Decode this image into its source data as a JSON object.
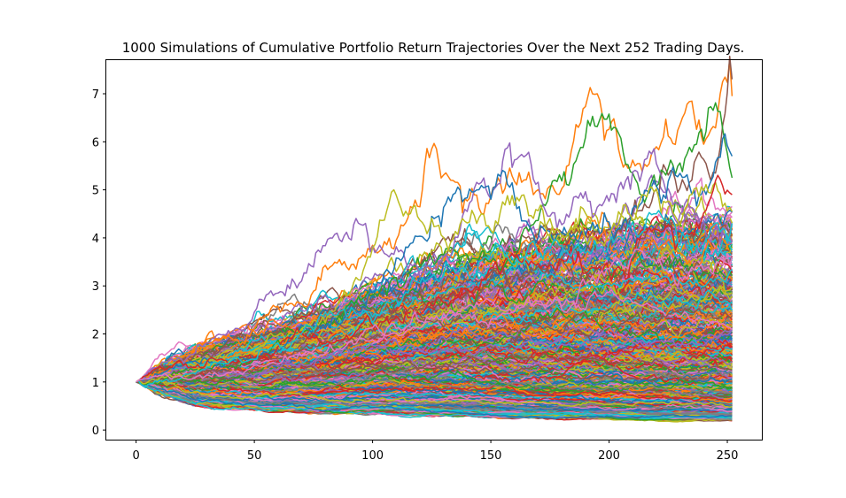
{
  "chart_data": {
    "type": "line",
    "title": "1000 Simulations of Cumulative Portfolio Return Trajectories Over the Next 252 Trading Days.",
    "xlabel": "",
    "ylabel": "",
    "xlim": [
      -12.6,
      264.6
    ],
    "ylim": [
      -0.2,
      7.7
    ],
    "x_ticks": [
      0,
      50,
      100,
      150,
      200,
      250
    ],
    "y_ticks": [
      0,
      1,
      2,
      3,
      4,
      5,
      6,
      7
    ],
    "grid": false,
    "legend": "none",
    "num_simulations": 1000,
    "num_days": 252,
    "start_value": 1.0,
    "palette": [
      "#1f77b4",
      "#ff7f0e",
      "#2ca02c",
      "#d62728",
      "#9467bd",
      "#8c564b",
      "#e377c2",
      "#7f7f7f",
      "#bcbd22",
      "#17becf"
    ],
    "highlight_series": [
      {
        "color": "#ff7f0e",
        "x": [
          0,
          30,
          60,
          90,
          110,
          127,
          140,
          160,
          180,
          195,
          200,
          210,
          225,
          235,
          245,
          252
        ],
        "values": [
          1.0,
          1.6,
          2.4,
          3.4,
          4.2,
          5.75,
          4.6,
          5.2,
          5.1,
          6.8,
          6.85,
          6.0,
          6.3,
          7.05,
          6.6,
          6.95
        ]
      },
      {
        "color": "#8c564b",
        "x": [
          0,
          40,
          80,
          120,
          160,
          200,
          230,
          245,
          252
        ],
        "values": [
          1.0,
          1.3,
          1.8,
          2.6,
          3.3,
          3.9,
          4.7,
          6.0,
          7.3
        ]
      },
      {
        "color": "#2ca02c",
        "x": [
          0,
          40,
          80,
          120,
          160,
          200,
          215,
          230,
          245,
          252
        ],
        "values": [
          1.0,
          1.4,
          2.1,
          3.3,
          4.0,
          6.05,
          5.1,
          5.5,
          6.6,
          5.25
        ]
      },
      {
        "color": "#9467bd",
        "x": [
          0,
          40,
          70,
          95,
          105,
          125,
          150,
          165,
          180,
          200,
          215,
          235,
          252
        ],
        "values": [
          1.0,
          2.0,
          2.9,
          4.6,
          3.8,
          3.4,
          5.1,
          5.7,
          4.6,
          5.0,
          5.5,
          4.8,
          3.9
        ]
      },
      {
        "color": "#1f77b4",
        "x": [
          0,
          40,
          80,
          110,
          135,
          160,
          190,
          220,
          240,
          252
        ],
        "values": [
          1.0,
          1.4,
          2.1,
          3.6,
          5.05,
          4.4,
          4.2,
          4.5,
          4.9,
          5.7
        ]
      },
      {
        "color": "#bcbd22",
        "x": [
          0,
          40,
          80,
          110,
          140,
          170,
          200,
          220,
          240,
          252
        ],
        "values": [
          1.0,
          1.5,
          2.2,
          4.2,
          4.3,
          4.5,
          4.7,
          4.95,
          5.0,
          4.55
        ]
      },
      {
        "color": "#d62728",
        "x": [
          0,
          50,
          100,
          150,
          200,
          230,
          252
        ],
        "values": [
          1.0,
          1.6,
          2.2,
          3.1,
          3.7,
          4.2,
          4.9
        ]
      },
      {
        "color": "#17becf",
        "x": [
          0,
          50,
          100,
          150,
          200,
          252
        ],
        "values": [
          1.0,
          1.5,
          2.6,
          3.6,
          3.8,
          4.3
        ]
      },
      {
        "color": "#e377c2",
        "x": [
          0,
          50,
          100,
          150,
          200,
          252
        ],
        "values": [
          1.0,
          1.3,
          2.0,
          2.7,
          3.2,
          3.6
        ]
      }
    ],
    "quantile_bands": {
      "x": [
        0,
        25,
        50,
        75,
        100,
        125,
        150,
        175,
        200,
        225,
        252
      ],
      "upper": [
        1.0,
        1.55,
        1.95,
        2.35,
        2.85,
        3.25,
        3.55,
        3.75,
        3.95,
        4.1,
        4.2
      ],
      "lower": [
        1.0,
        0.58,
        0.48,
        0.42,
        0.38,
        0.34,
        0.31,
        0.28,
        0.26,
        0.24,
        0.22
      ]
    }
  }
}
